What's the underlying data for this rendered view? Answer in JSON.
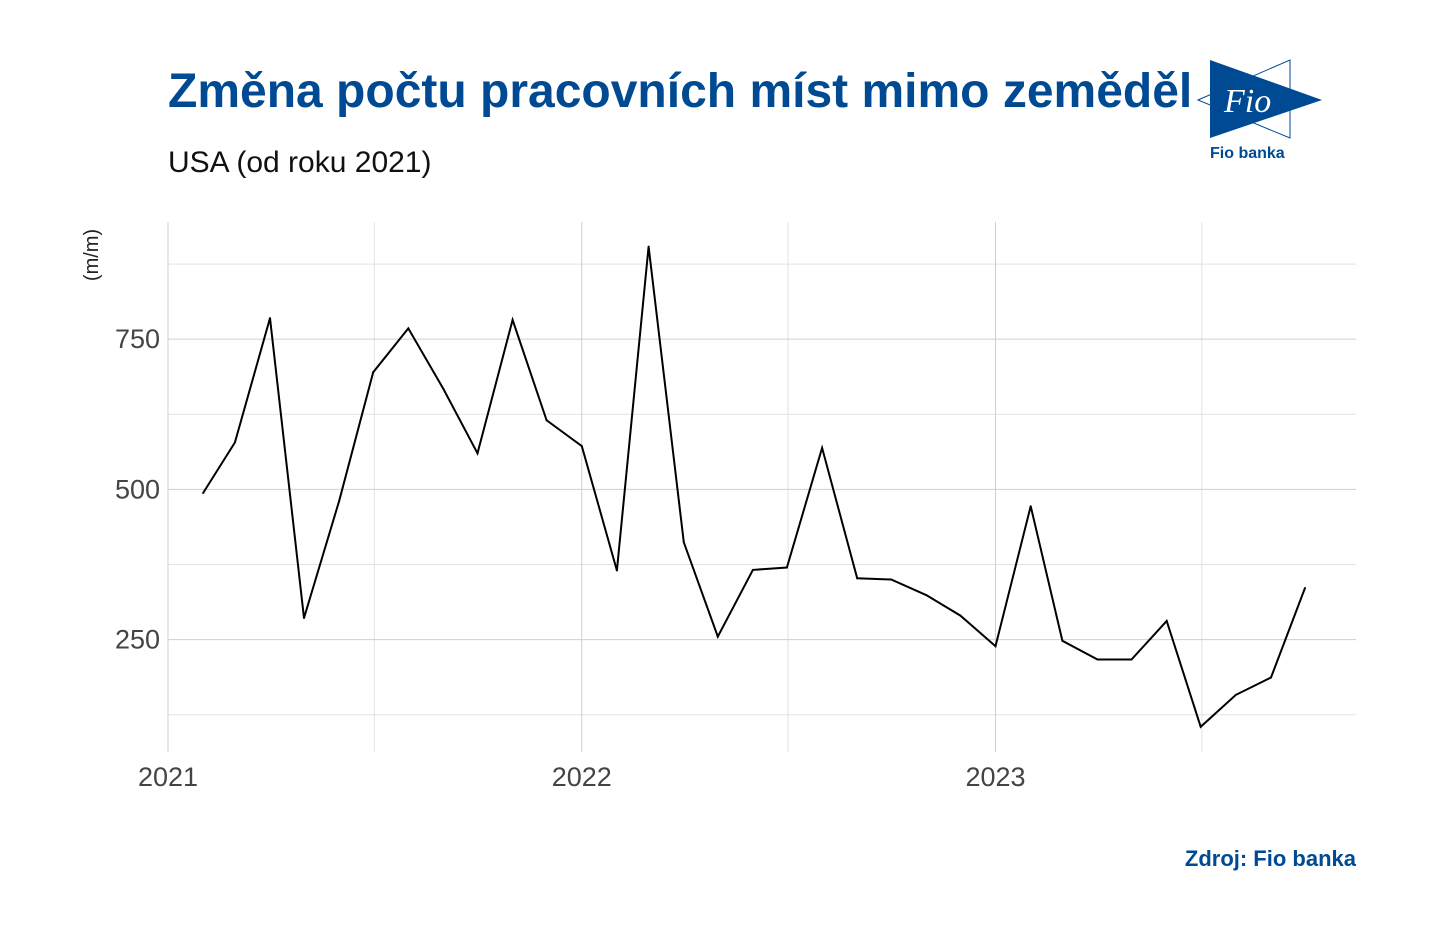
{
  "title": "Změna počtu pracovních míst mimo zemědělství",
  "subtitle": "USA (od roku 2021)",
  "source": "Zdroj: Fio banka",
  "logo": {
    "mark": "Fio",
    "name": "Fio banka"
  },
  "colors": {
    "brand": "#004a93",
    "line": "#000000",
    "grid": "#d0d0d0"
  },
  "chart_data": {
    "type": "line",
    "ylabel": "(m/m)",
    "xlim": [
      "2021-01-01",
      "2023-11-15"
    ],
    "ylim": [
      63,
      945
    ],
    "x_ticks": [
      {
        "label": "2021",
        "date": "2021-01-01"
      },
      {
        "label": "2022",
        "date": "2022-01-01"
      },
      {
        "label": "2023",
        "date": "2023-01-01"
      }
    ],
    "y_ticks": [
      250,
      500,
      750
    ],
    "grid": true,
    "legend": "none",
    "series": [
      {
        "x": [
          "2021-02-01",
          "2021-03-01",
          "2021-04-01",
          "2021-05-01",
          "2021-06-01",
          "2021-07-01",
          "2021-08-01",
          "2021-09-01",
          "2021-10-01",
          "2021-11-01",
          "2021-12-01",
          "2022-01-01",
          "2022-02-01",
          "2022-03-01",
          "2022-04-01",
          "2022-05-01",
          "2022-06-01",
          "2022-07-01",
          "2022-08-01",
          "2022-09-01",
          "2022-10-01",
          "2022-11-01",
          "2022-12-01",
          "2023-01-01",
          "2023-02-01",
          "2023-03-01",
          "2023-04-01",
          "2023-05-01",
          "2023-06-01",
          "2023-07-01",
          "2023-08-01",
          "2023-09-01",
          "2023-10-01"
        ],
        "values": [
          494,
          578,
          785,
          286,
          481,
          695,
          768,
          667,
          560,
          782,
          615,
          572,
          365,
          904,
          412,
          255,
          366,
          370,
          569,
          352,
          350,
          324,
          290,
          239,
          472,
          248,
          217,
          217,
          281,
          105,
          158,
          187,
          336
        ]
      }
    ]
  }
}
